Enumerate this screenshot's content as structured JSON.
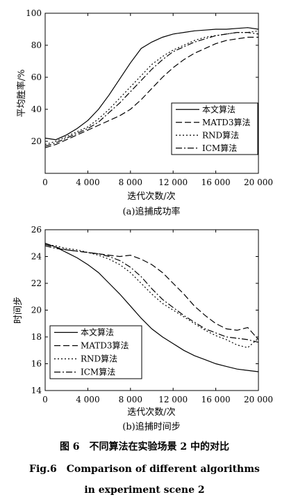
{
  "series_style": {
    "本文算法": {
      "dash": ""
    },
    "MATD3算法": {
      "dash": "9,4"
    },
    "RND算法": {
      "dash": "2,3"
    },
    "ICM算法": {
      "dash": "9,3,2,3"
    }
  },
  "chart_data": [
    {
      "type": "line",
      "subtitle": "(a)追捕成功率",
      "xlabel": "迭代次数/次",
      "ylabel": "平均胜率/%",
      "xlim": [
        0,
        20000
      ],
      "ylim": [
        0,
        100
      ],
      "xticks": [
        0,
        4000,
        8000,
        12000,
        16000,
        20000
      ],
      "xtick_labels": [
        "0",
        "4 000",
        "8 000",
        "12 000",
        "16 000",
        "20 000"
      ],
      "yticks": [
        20,
        40,
        60,
        80,
        100
      ],
      "ytick_labels": [
        "20",
        "40",
        "60",
        "80",
        "100"
      ],
      "legend_position": "bottom-right",
      "x": [
        0,
        1000,
        2000,
        3000,
        4000,
        5000,
        6000,
        7000,
        8000,
        9000,
        10000,
        11000,
        12000,
        13000,
        14000,
        15000,
        16000,
        17000,
        18000,
        19000,
        20000
      ],
      "series": [
        {
          "name": "本文算法",
          "values": [
            22,
            21,
            24,
            28,
            33,
            40,
            49,
            59,
            69,
            78,
            82,
            85,
            87,
            88,
            89,
            89.5,
            90,
            90,
            90.5,
            91,
            90
          ]
        },
        {
          "name": "MATD3算法",
          "values": [
            16,
            18,
            21,
            24,
            27,
            30,
            33,
            36,
            40,
            46,
            53,
            60,
            66,
            71,
            75,
            78,
            81,
            83,
            84,
            85,
            85
          ]
        },
        {
          "name": "RND算法",
          "values": [
            18,
            20,
            23,
            26,
            29,
            34,
            40,
            47,
            54,
            61,
            68,
            73,
            77,
            80,
            83,
            85,
            86,
            87,
            88,
            88,
            89
          ]
        },
        {
          "name": "ICM算法",
          "values": [
            17,
            19,
            22,
            25,
            28,
            32,
            38,
            44,
            51,
            58,
            65,
            71,
            76,
            79,
            82,
            84,
            86,
            87,
            88,
            88,
            87
          ]
        }
      ]
    },
    {
      "type": "line",
      "subtitle": "(b)追捕时间步",
      "xlabel": "迭代次数/次",
      "ylabel": "时间步",
      "xlim": [
        0,
        20000
      ],
      "ylim": [
        14,
        26
      ],
      "xticks": [
        0,
        4000,
        8000,
        12000,
        16000,
        20000
      ],
      "xtick_labels": [
        "0",
        "4 000",
        "8 000",
        "12 000",
        "16 000",
        "20 000"
      ],
      "yticks": [
        14,
        16,
        18,
        20,
        22,
        24,
        26
      ],
      "ytick_labels": [
        "14",
        "16",
        "18",
        "20",
        "22",
        "24",
        "26"
      ],
      "legend_position": "bottom-left",
      "x": [
        0,
        1000,
        2000,
        3000,
        4000,
        5000,
        6000,
        7000,
        8000,
        9000,
        10000,
        11000,
        12000,
        13000,
        14000,
        15000,
        16000,
        17000,
        18000,
        19000,
        20000
      ],
      "series": [
        {
          "name": "本文算法",
          "values": [
            25.0,
            24.7,
            24.3,
            23.9,
            23.4,
            22.8,
            22.0,
            21.2,
            20.3,
            19.4,
            18.6,
            18.0,
            17.5,
            17.0,
            16.6,
            16.3,
            16.0,
            15.8,
            15.6,
            15.5,
            15.4
          ]
        },
        {
          "name": "MATD3算法",
          "values": [
            24.9,
            24.7,
            24.5,
            24.4,
            24.3,
            24.2,
            24.1,
            24.0,
            24.1,
            23.8,
            23.4,
            22.8,
            22.0,
            21.2,
            20.3,
            19.6,
            19.0,
            18.6,
            18.5,
            18.7,
            17.8
          ]
        },
        {
          "name": "RND算法",
          "values": [
            24.9,
            24.8,
            24.6,
            24.5,
            24.3,
            24.1,
            23.8,
            23.4,
            22.8,
            22.0,
            21.2,
            20.5,
            20.0,
            19.5,
            19.0,
            18.5,
            18.1,
            17.8,
            17.4,
            17.2,
            17.9
          ]
        },
        {
          "name": "ICM算法",
          "values": [
            24.8,
            24.6,
            24.5,
            24.4,
            24.3,
            24.2,
            24.0,
            23.7,
            23.2,
            22.5,
            21.6,
            20.8,
            20.2,
            19.6,
            19.1,
            18.6,
            18.3,
            18.0,
            17.9,
            17.8,
            17.6
          ]
        }
      ]
    }
  ],
  "caption": {
    "cn": "图 6　不同算法在实验场景 2 中的对比",
    "en_line1": "Fig.6　Comparison of different algorithms",
    "en_line2": "in experiment scene 2"
  }
}
